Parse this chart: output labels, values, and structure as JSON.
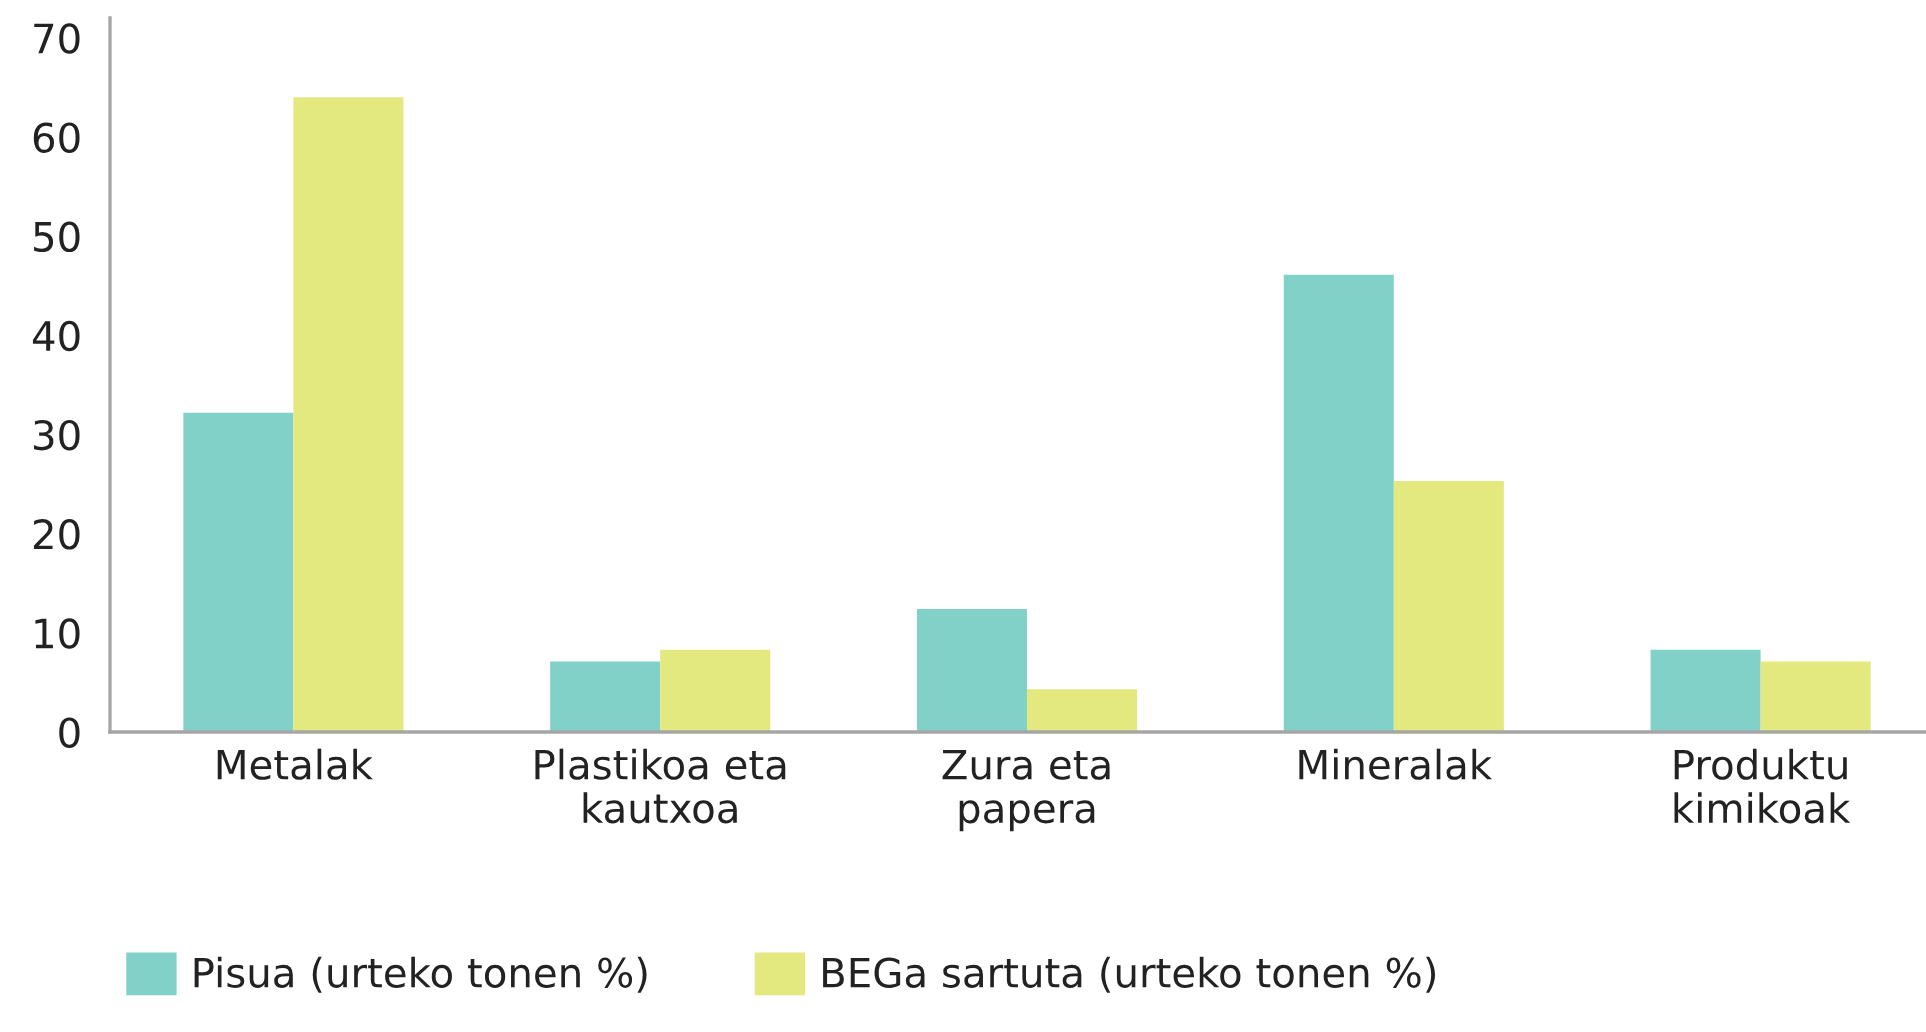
{
  "chart_data": {
    "type": "bar",
    "categories": [
      "Metalak",
      "Plastikoa eta\nkautxoa",
      "Zura eta\npapera",
      "Mineralak",
      "Produktu\nkimikoak"
    ],
    "series": [
      {
        "name": "Pisua (urteko tonen %)",
        "color": "#82d1c9",
        "values": [
          32.2,
          7.1,
          12.4,
          46.1,
          8.3
        ]
      },
      {
        "name": "BEGa sartuta (urteko tonen %)",
        "color": "#e3e97f",
        "values": [
          64,
          8.3,
          4.3,
          25.3,
          7.1
        ]
      }
    ],
    "ylim": [
      0,
      72
    ],
    "yticks": [
      0,
      10,
      20,
      30,
      40,
      50,
      60,
      70
    ],
    "legend": "bottom"
  }
}
